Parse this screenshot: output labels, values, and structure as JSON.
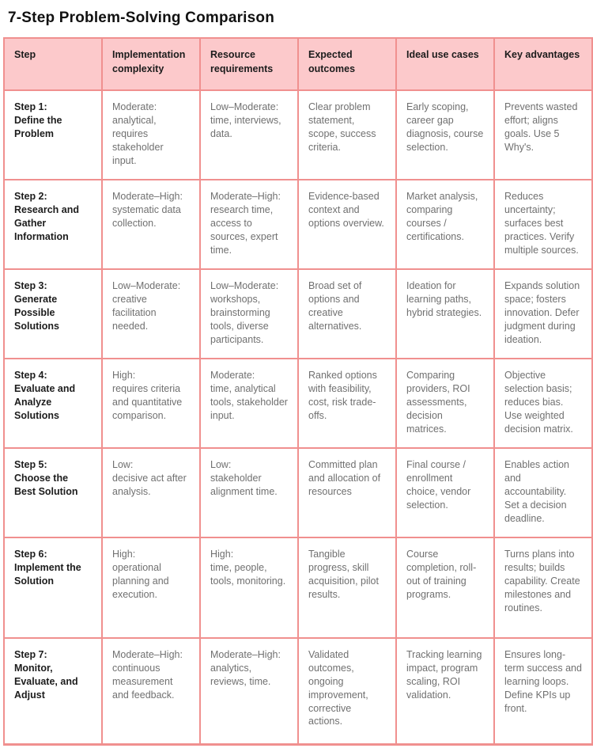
{
  "title": "7-Step Problem-Solving Comparison",
  "colors": {
    "header_bg": "#fcc9cb",
    "border": "#f0908f",
    "step_text": "#1c1c1c",
    "body_text": "#707070"
  },
  "table": {
    "columns": [
      "Step",
      "Implementation complexity",
      "Resource requirements",
      "Expected outcomes",
      "Ideal use cases",
      "Key advantages"
    ],
    "rows": [
      {
        "step": "Step 1:\nDefine the Problem",
        "complexity": "Moderate:\nanalytical, requires stakeholder input.",
        "resources": "Low–Moderate:\ntime, interviews, data.",
        "outcomes": "Clear problem statement, scope, success criteria.",
        "use_cases": "Early scoping, career gap diagnosis, course selection.",
        "advantages": "Prevents wasted effort; aligns goals. Use 5 Why's."
      },
      {
        "step": "Step 2:\nResearch and Gather Information",
        "complexity": "Moderate–High:\nsystematic data collection.",
        "resources": "Moderate–High:\nresearch time, access to sources, expert time.",
        "outcomes": "Evidence-based context and options overview.",
        "use_cases": "Market analysis, comparing courses / certifications.",
        "advantages": "Reduces uncertainty; surfaces best practices. Verify multiple sources."
      },
      {
        "step": "Step 3:\nGenerate Possible Solutions",
        "complexity": "Low–Moderate:\ncreative facilitation needed.",
        "resources": "Low–Moderate:\nworkshops, brainstorming tools, diverse participants.",
        "outcomes": "Broad set of options and creative alternatives.",
        "use_cases": "Ideation for learning paths, hybrid strategies.",
        "advantages": "Expands solution space; fosters innovation. Defer judgment during ideation."
      },
      {
        "step": "Step 4:\nEvaluate and Analyze Solutions",
        "complexity": "High:\nrequires criteria and quantitative comparison.",
        "resources": "Moderate:\ntime, analytical tools, stakeholder input.",
        "outcomes": "Ranked options with feasibility, cost, risk trade-offs.",
        "use_cases": "Comparing providers, ROI assessments, decision matrices.",
        "advantages": "Objective selection basis; reduces bias. Use weighted decision matrix."
      },
      {
        "step": "Step 5:\nChoose the Best Solution",
        "complexity": "Low:\ndecisive act after analysis.",
        "resources": "Low:\nstakeholder alignment time.",
        "outcomes": "Committed plan and allocation of resources",
        "use_cases": "Final course / enrollment choice, vendor selection.",
        "advantages": "Enables action and accountability. Set a decision deadline."
      },
      {
        "step": "Step 6:\nImplement the Solution",
        "complexity": "High:\noperational planning and execution.",
        "resources": "High:\ntime, people, tools, monitoring.",
        "outcomes": "Tangible progress, skill acquisition, pilot results.",
        "use_cases": "Course completion, roll-out of training programs.",
        "advantages": "Turns plans into results; builds capability. Create milestones and routines."
      },
      {
        "step": "Step 7:\nMonitor, Evaluate, and Adjust",
        "complexity": "Moderate–High:\ncontinuous measurement and feedback.",
        "resources": "Moderate–High:\nanalytics, reviews, time.",
        "outcomes": "Validated outcomes, ongoing improvement, corrective actions.",
        "use_cases": "Tracking learning impact, program scaling, ROI validation.",
        "advantages": "Ensures long-term success and learning loops. Define KPIs up front."
      }
    ]
  }
}
